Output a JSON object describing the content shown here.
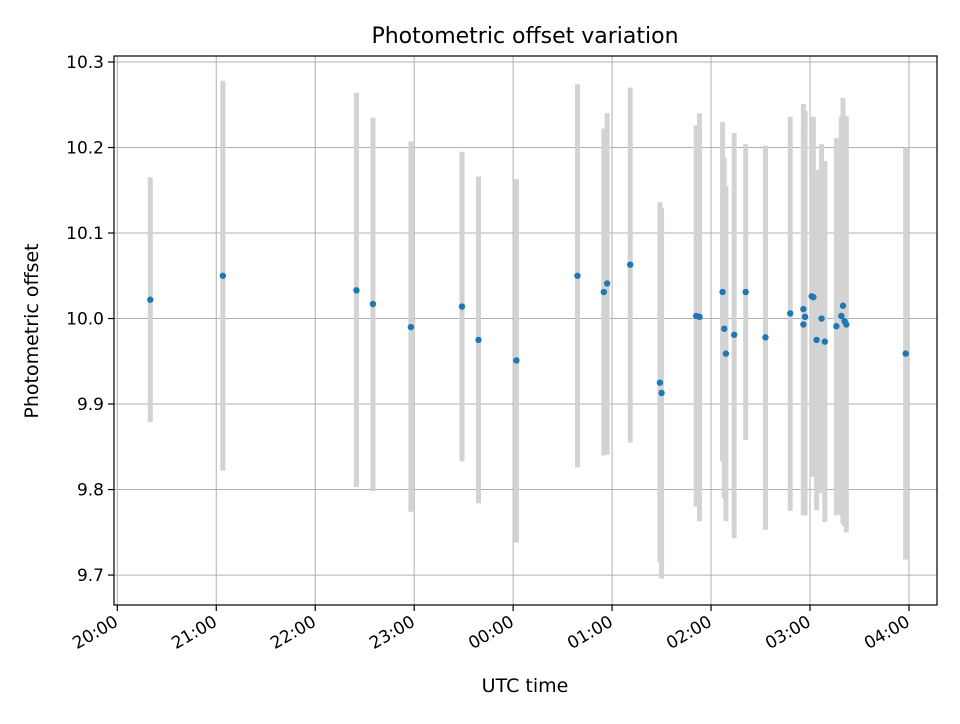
{
  "chart_data": {
    "type": "scatter",
    "title": "Photometric offset variation",
    "xlabel": "UTC time",
    "ylabel": "Photometric offset",
    "xlim": [
      "19:58",
      "04:17"
    ],
    "ylim": [
      9.665,
      10.307
    ],
    "x_ticks": [
      "20:00",
      "21:00",
      "22:00",
      "23:00",
      "00:00",
      "01:00",
      "02:00",
      "03:00",
      "04:00"
    ],
    "y_ticks": [
      "9.7",
      "9.8",
      "9.9",
      "10.0",
      "10.1",
      "10.2",
      "10.3"
    ],
    "grid": true,
    "colors": {
      "point": "#1f77b4",
      "errorbar": "#d3d3d3",
      "grid": "#b0b0b0"
    },
    "series": [
      {
        "errorbar": true,
        "points": [
          {
            "t": "20:20",
            "y": 10.022,
            "lo": 9.879,
            "hi": 10.165
          },
          {
            "t": "21:04",
            "y": 10.05,
            "lo": 9.822,
            "hi": 10.278
          },
          {
            "t": "22:25",
            "y": 10.033,
            "lo": 9.803,
            "hi": 10.264
          },
          {
            "t": "22:35",
            "y": 10.017,
            "lo": 9.798,
            "hi": 10.235
          },
          {
            "t": "22:58",
            "y": 9.99,
            "lo": 9.774,
            "hi": 10.207
          },
          {
            "t": "23:29",
            "y": 10.014,
            "lo": 9.833,
            "hi": 10.195
          },
          {
            "t": "23:39",
            "y": 9.975,
            "lo": 9.784,
            "hi": 10.166
          },
          {
            "t": "00:02",
            "y": 9.951,
            "lo": 9.738,
            "hi": 10.163
          },
          {
            "t": "00:39",
            "y": 10.05,
            "lo": 9.826,
            "hi": 10.274
          },
          {
            "t": "00:55",
            "y": 10.031,
            "lo": 9.84,
            "hi": 10.222
          },
          {
            "t": "00:57",
            "y": 10.041,
            "lo": 9.841,
            "hi": 10.24
          },
          {
            "t": "01:11",
            "y": 10.063,
            "lo": 9.855,
            "hi": 10.27
          },
          {
            "t": "01:29",
            "y": 9.925,
            "lo": 9.715,
            "hi": 10.136
          },
          {
            "t": "01:30",
            "y": 9.913,
            "lo": 9.696,
            "hi": 10.129
          },
          {
            "t": "01:51",
            "y": 10.003,
            "lo": 9.78,
            "hi": 10.226
          },
          {
            "t": "01:53",
            "y": 10.002,
            "lo": 9.763,
            "hi": 10.24
          },
          {
            "t": "02:07",
            "y": 10.031,
            "lo": 9.833,
            "hi": 10.23
          },
          {
            "t": "02:08",
            "y": 9.988,
            "lo": 9.79,
            "hi": 10.188
          },
          {
            "t": "02:09",
            "y": 9.959,
            "lo": 9.763,
            "hi": 10.155
          },
          {
            "t": "02:14",
            "y": 9.981,
            "lo": 9.743,
            "hi": 10.217
          },
          {
            "t": "02:21",
            "y": 10.031,
            "lo": 9.858,
            "hi": 10.204
          },
          {
            "t": "02:33",
            "y": 9.978,
            "lo": 9.753,
            "hi": 10.202
          },
          {
            "t": "02:48",
            "y": 10.006,
            "lo": 9.775,
            "hi": 10.236
          },
          {
            "t": "02:56",
            "y": 9.993,
            "lo": 9.77,
            "hi": 10.216
          },
          {
            "t": "02:56",
            "y": 10.011,
            "lo": 9.77,
            "hi": 10.251
          },
          {
            "t": "02:57",
            "y": 10.002,
            "lo": 9.77,
            "hi": 10.243
          },
          {
            "t": "03:01",
            "y": 10.026,
            "lo": 9.815,
            "hi": 10.236
          },
          {
            "t": "03:02",
            "y": 10.025,
            "lo": 9.815,
            "hi": 10.236
          },
          {
            "t": "03:04",
            "y": 9.975,
            "lo": 9.776,
            "hi": 10.174
          },
          {
            "t": "03:07",
            "y": 10.0,
            "lo": 9.796,
            "hi": 10.204
          },
          {
            "t": "03:09",
            "y": 9.973,
            "lo": 9.762,
            "hi": 10.184
          },
          {
            "t": "03:16",
            "y": 9.991,
            "lo": 9.77,
            "hi": 10.211
          },
          {
            "t": "03:19",
            "y": 10.003,
            "lo": 9.77,
            "hi": 10.236
          },
          {
            "t": "03:20",
            "y": 10.015,
            "lo": 9.76,
            "hi": 10.258
          },
          {
            "t": "03:21",
            "y": 9.997,
            "lo": 9.757,
            "hi": 10.237
          },
          {
            "t": "03:22",
            "y": 9.993,
            "lo": 9.75,
            "hi": 10.236
          },
          {
            "t": "03:58",
            "y": 9.959,
            "lo": 9.718,
            "hi": 10.2
          }
        ]
      }
    ]
  }
}
